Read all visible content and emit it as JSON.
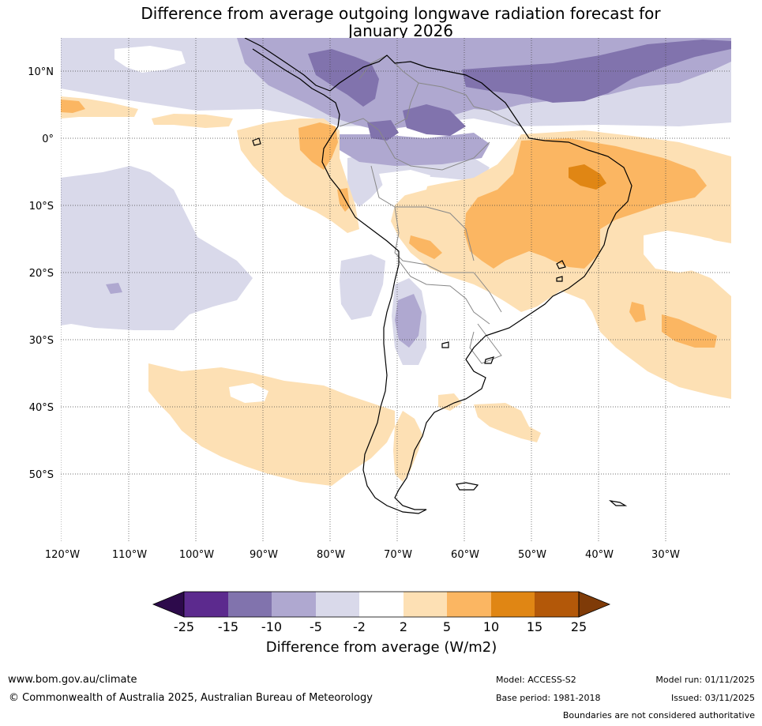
{
  "title_line1": "Difference from average outgoing longwave radiation forecast for",
  "title_line2": "January 2026",
  "lat_labels": [
    "10°N",
    "0°",
    "10°S",
    "20°S",
    "30°S",
    "40°S",
    "50°S"
  ],
  "lon_labels": [
    "120°W",
    "110°W",
    "100°W",
    "90°W",
    "80°W",
    "70°W",
    "60°W",
    "50°W",
    "40°W",
    "30°W"
  ],
  "colorbar": {
    "ticks": [
      "-25",
      "-15",
      "-10",
      "-5",
      "-2",
      "2",
      "5",
      "10",
      "15",
      "25"
    ],
    "label": "Difference from average (W/m2)",
    "colors": {
      "below_min": "#2d0a4b",
      "c_25_15": "#5c2a8e",
      "c_15_10": "#8173ad",
      "c_10_5": "#afa8d0",
      "c_5_2": "#d9d9ea",
      "c_2_2": "#ffffff",
      "c2_5": "#fde0b4",
      "c5_10": "#fbb662",
      "c10_15": "#e08614",
      "c15_25": "#b35809",
      "above_max": "#7f3b08"
    }
  },
  "footer": {
    "website": "www.bom.gov.au/climate",
    "copyright": "© Commonwealth of Australia 2025, Australian Bureau of Meteorology",
    "model": "Model: ACCESS-S2",
    "base_period": "Base period: 1981-2018",
    "model_run": "Model run: 01/11/2025",
    "issued": "Issued: 03/11/2025",
    "disclaimer": "Boundaries are not considered authoritative"
  }
}
